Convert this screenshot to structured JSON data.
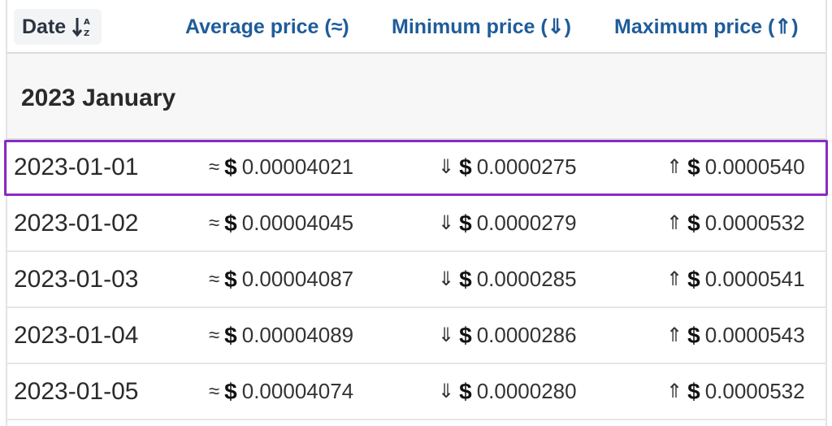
{
  "header": {
    "date_label": "Date",
    "avg_label": "Average price (≈)",
    "min_label": "Minimum price (⇓)",
    "max_label": "Maximum price (⇑)",
    "sort_icon": "sort-az-icon"
  },
  "group": {
    "label": "2023 January"
  },
  "symbols": {
    "approx": "≈",
    "down": "⇓",
    "up": "⇑",
    "dollar": "$"
  },
  "rows": [
    {
      "date": "2023-01-01",
      "avg": "0.00004021",
      "min": "0.0000275",
      "max": "0.0000540",
      "highlighted": true
    },
    {
      "date": "2023-01-02",
      "avg": "0.00004045",
      "min": "0.0000279",
      "max": "0.0000532"
    },
    {
      "date": "2023-01-03",
      "avg": "0.00004087",
      "min": "0.0000285",
      "max": "0.0000541"
    },
    {
      "date": "2023-01-04",
      "avg": "0.00004089",
      "min": "0.0000286",
      "max": "0.0000543"
    },
    {
      "date": "2023-01-05",
      "avg": "0.00004074",
      "min": "0.0000280",
      "max": "0.0000532"
    }
  ],
  "colors": {
    "header_text": "#1f5c99",
    "highlight": "#8a2bc2"
  }
}
